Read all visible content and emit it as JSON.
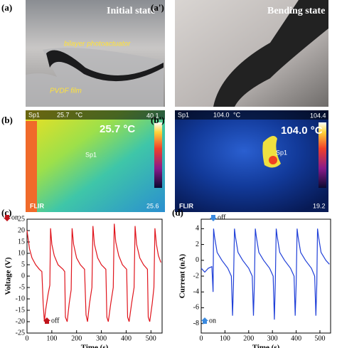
{
  "panels": [
    {
      "label": "(a)",
      "title": "Initial state",
      "notes": [
        "bilayer photoactuator",
        "PVDF film"
      ]
    },
    {
      "label": "(a')",
      "title": "Bending state"
    },
    {
      "label": "(b)",
      "spot": "Sp1",
      "reading": "25.7",
      "unit": "°C",
      "max": "40.1",
      "min": "25.6",
      "temp": "25.7 °C",
      "brand": "FLIR",
      "marker": "Sp1"
    },
    {
      "label": "(b')",
      "spot": "Sp1",
      "reading": "104.0",
      "unit": "°C",
      "max": "104.4",
      "min": "19.2",
      "temp": "104.0 °C",
      "brand": "FLIR",
      "marker": "Sp1"
    }
  ],
  "chart_data": [
    {
      "type": "line",
      "label": "(c)",
      "x_label": "Time (s)",
      "y_label": "Voltage (V)",
      "color": "#e0141c",
      "annotations": [
        "on",
        "off"
      ],
      "xlim": [
        0,
        545
      ],
      "xticks": [
        0,
        100,
        200,
        300,
        400,
        500
      ],
      "ylim": [
        -25,
        25
      ],
      "yticks": [
        -25,
        -20,
        -15,
        -10,
        -5,
        0,
        5,
        10,
        15,
        20,
        25
      ],
      "x": [
        0,
        10,
        20,
        35,
        50,
        60,
        65,
        70,
        75,
        85,
        92,
        95,
        100,
        110,
        125,
        145,
        152,
        155,
        162,
        170,
        178,
        182,
        188,
        200,
        215,
        232,
        238,
        244,
        252,
        262,
        266,
        272,
        285,
        300,
        318,
        322,
        328,
        338,
        348,
        352,
        358,
        370,
        385,
        402,
        406,
        412,
        422,
        432,
        436,
        442,
        455,
        470,
        486,
        489,
        495,
        505,
        512,
        516,
        522,
        530,
        540
      ],
      "values": [
        20,
        12,
        8,
        5,
        3,
        2,
        -12,
        -20,
        -15,
        -8,
        -4,
        21,
        14,
        9,
        5,
        3,
        2,
        -18,
        -20,
        -12,
        -6,
        21,
        14,
        8,
        5,
        3,
        -17,
        -20,
        -12,
        -5,
        22,
        14,
        8,
        5,
        3,
        -18,
        -20,
        -12,
        -5,
        23,
        15,
        9,
        5,
        3,
        -18,
        -20,
        -12,
        -5,
        22,
        14,
        8,
        5,
        3,
        -18,
        -20,
        -12,
        -5,
        21,
        14,
        9,
        6
      ]
    },
    {
      "type": "line",
      "label": "(d)",
      "x_label": "Time (s)",
      "y_label": "Current (nA)",
      "color": "#1f3fd8",
      "annotations": [
        "off",
        "on"
      ],
      "xlim": [
        0,
        545
      ],
      "xticks": [
        0,
        100,
        200,
        300,
        400,
        500
      ],
      "ylim": [
        -9.2,
        5.2
      ],
      "yticks": [
        -8,
        -6,
        -4,
        -2,
        0,
        2,
        4
      ],
      "x": [
        0,
        15,
        30,
        45,
        50,
        52,
        56,
        67,
        87,
        112,
        127,
        132,
        136,
        140,
        144,
        155,
        175,
        200,
        215,
        220,
        224,
        228,
        232,
        243,
        263,
        288,
        303,
        308,
        312,
        316,
        320,
        331,
        351,
        376,
        391,
        396,
        400,
        404,
        408,
        419,
        439,
        464,
        478,
        483,
        487,
        490,
        494,
        505,
        525,
        540
      ],
      "values": [
        -1,
        -1.5,
        -1,
        -0.8,
        -4,
        4,
        3,
        1,
        0,
        -1,
        -2,
        -7,
        -3,
        4,
        3,
        1,
        0,
        -1,
        -2,
        -7,
        -3,
        4,
        3,
        1,
        0,
        -1,
        -2,
        -7.5,
        -3,
        4,
        3,
        1,
        0,
        -1,
        -2,
        -7,
        -3,
        4,
        3,
        1,
        0,
        -1,
        -2,
        -7,
        -3,
        4,
        3,
        1,
        0,
        -0.5
      ]
    }
  ]
}
